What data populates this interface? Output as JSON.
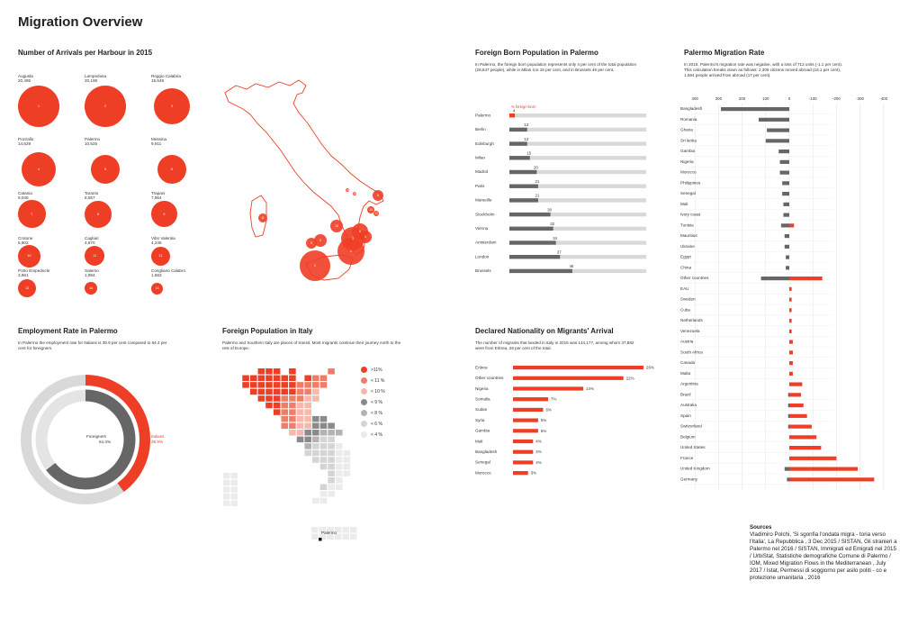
{
  "title": "Migration Overview",
  "colors": {
    "red": "#ef3e26",
    "dark": "#666666",
    "grey": "#d9d9d9"
  },
  "arrivals": {
    "heading": "Number of Arrivals per Harbour in 2015",
    "harbours": [
      {
        "name": "Augusta",
        "value": "20,495",
        "num": 20495,
        "rank": "1"
      },
      {
        "name": "Lampedusa",
        "value": "20,198",
        "num": 20198,
        "rank": "2"
      },
      {
        "name": "Reggio Calabria",
        "value": "15,649",
        "num": 15649,
        "rank": "3"
      },
      {
        "name": "Pozzallo",
        "value": "14,529",
        "num": 14529,
        "rank": "4"
      },
      {
        "name": "Palermo",
        "value": "10,525",
        "num": 10525,
        "rank": "5"
      },
      {
        "name": "Messina",
        "value": "9,911",
        "num": 9911,
        "rank": "6"
      },
      {
        "name": "Catania",
        "value": "9,049",
        "num": 9049,
        "rank": "7"
      },
      {
        "name": "Taranto",
        "value": "8,557",
        "num": 8557,
        "rank": "8"
      },
      {
        "name": "Trapani",
        "value": "7,954",
        "num": 7954,
        "rank": "9"
      },
      {
        "name": "Crotone",
        "value": "5,902",
        "num": 5902,
        "rank": "10"
      },
      {
        "name": "Cagliari",
        "value": "4,870",
        "num": 4870,
        "rank": "11"
      },
      {
        "name": "Vibo Valentia",
        "value": "4,245",
        "num": 4245,
        "rank": "12"
      },
      {
        "name": "Porto Empedocle",
        "value": "3,961",
        "num": 3961,
        "rank": "13"
      },
      {
        "name": "Salerno",
        "value": "1,994",
        "num": 1994,
        "rank": "14"
      },
      {
        "name": "Corigliano Calabro",
        "value": "1,683",
        "num": 1683,
        "rank": "15"
      }
    ]
  },
  "employment": {
    "heading": "Employment Rate in Palermo",
    "description": "In Palermo the employment rate for Italians is 39.9 per cent compared to 64.4 per cent for foreigners.",
    "foreigners_label": "Foreigners",
    "foreigners_value": "64.4%",
    "italians_label": "Italians",
    "italians_value": "39.9%"
  },
  "foreign_population": {
    "heading": "Foreign Population in Italy",
    "description": "Palermo and Southern Italy are places of transit. Most migrants continue their journey north to the rest of Europe.",
    "legend": [
      ">11%",
      "< 11 %",
      "< 10 %",
      "< 9 %",
      "< 8 %",
      "< 6 %",
      "< 4 %"
    ],
    "city_label": "Palermo"
  },
  "palermo_foreign": {
    "heading": "Foreign Born Population in Palermo",
    "description": "In Palermo, the foreign born population represents only 4 per cent of the total population (26,647 people), while in Milan it is 15 per cent, and in Brussels 46 per cent.",
    "legend_label": "% foreign-born"
  },
  "nationality": {
    "heading": "Declared Nationality on Migrants' Arrival",
    "description": "The number of migrants that landed in Italy in 2015 was 144,177, among whom 37,882 were from Eritrea, 26 per cent of the total."
  },
  "migration_rate": {
    "heading": "Palermo Migration Rate",
    "description": "In 2015, Palermo's migration rate was negative, with a loss of 712 units (-1.1 per cent). This calculation breaks down as follows: 2,306 citizens moved abroad (18.1 per cent), 1,594 people arrived from abroad (17 per cent)."
  },
  "sources": {
    "heading": "Sources",
    "text": "Vladimiro Polchi, 'Si sgonfia l'ondata migra - toria verso l'Italia', La Repubblica , 3 Dec 2015 / SISTAN, Gli stranieri a Palermo nel 2016 / SISTAN, Immigrati ed Emigrati nel 2015 / UrbiStat, Statistiche demografiche Comune di Palermo / IOM, Mixed Migration Flows in the Mediterranean , July 2017 / Istat, Permessi di soggiorno per asilo politi - co e protezione umanitaria , 2016"
  },
  "chart_data": [
    {
      "type": "bar",
      "orientation": "horizontal",
      "title": "Foreign Born Population in Palermo",
      "categories": [
        "Palermo",
        "Berlin",
        "Edinburgh",
        "Milan",
        "Madrid",
        "Paris",
        "Marseille",
        "Stockholm",
        "Vienna",
        "Amsterdam",
        "London",
        "Brussels"
      ],
      "values": [
        4,
        13,
        13,
        15,
        20,
        21,
        21,
        30,
        32,
        34,
        37,
        46
      ],
      "xlim": [
        0,
        100
      ]
    },
    {
      "type": "bar",
      "orientation": "horizontal",
      "title": "Declared Nationality on Migrants' Arrival",
      "categories": [
        "Eritrea",
        "Other countries",
        "Nigeria",
        "Somalia",
        "Sudan",
        "Syria",
        "Gambia",
        "Mali",
        "Bangladesh",
        "Senegal",
        "Morocco"
      ],
      "values": [
        26,
        22,
        14,
        7,
        6,
        5,
        5,
        4,
        4,
        4,
        3
      ],
      "labels": [
        "26%",
        "22%",
        "14%",
        "7%",
        "6%",
        "5%",
        "5%",
        "4%",
        "4%",
        "4%",
        "3%"
      ]
    },
    {
      "type": "bar",
      "orientation": "horizontal",
      "title": "Palermo Migration Rate",
      "x_ticks": [
        "400",
        "300",
        "200",
        "100",
        "0",
        "-100",
        "-200",
        "-300",
        "-400",
        "-500"
      ],
      "xlim": [
        400,
        -500
      ],
      "categories": [
        "Bangladesh",
        "Romania",
        "Ghana",
        "Sri lanka",
        "Gambia",
        "Nigeria",
        "Morocco",
        "Philippines",
        "Senegal",
        "Mali",
        "Ivory coast",
        "Tunisia",
        "Mauritius",
        "Ukraine",
        "Egypt",
        "China",
        "Other countries",
        "EAU",
        "Sweden",
        "Cuba",
        "Netherlands",
        "Venezuela",
        "Austria",
        "South Africa",
        "Canada",
        "Malta",
        "Argentina",
        "Brazil",
        "Australia",
        "Spain",
        "Switzerland",
        "Belgium",
        "United States",
        "France",
        "United Kingdom",
        "Germany"
      ],
      "series": [
        {
          "name": "arrived",
          "values": [
            290,
            130,
            95,
            100,
            45,
            40,
            40,
            30,
            30,
            25,
            25,
            35,
            20,
            20,
            15,
            15,
            120,
            0,
            0,
            0,
            0,
            0,
            0,
            0,
            0,
            0,
            0,
            5,
            5,
            5,
            5,
            0,
            0,
            0,
            20,
            10
          ]
        },
        {
          "name": "moved abroad",
          "values": [
            0,
            0,
            0,
            0,
            0,
            0,
            0,
            0,
            0,
            0,
            0,
            20,
            0,
            0,
            0,
            0,
            140,
            10,
            10,
            10,
            10,
            10,
            15,
            15,
            15,
            15,
            55,
            50,
            60,
            75,
            95,
            115,
            135,
            200,
            290,
            360
          ]
        }
      ]
    },
    {
      "type": "pie",
      "title": "Employment Rate in Palermo",
      "series": [
        {
          "name": "Foreigners",
          "values": [
            64.4,
            35.6
          ]
        },
        {
          "name": "Italians",
          "values": [
            39.9,
            60.1
          ]
        }
      ]
    }
  ]
}
